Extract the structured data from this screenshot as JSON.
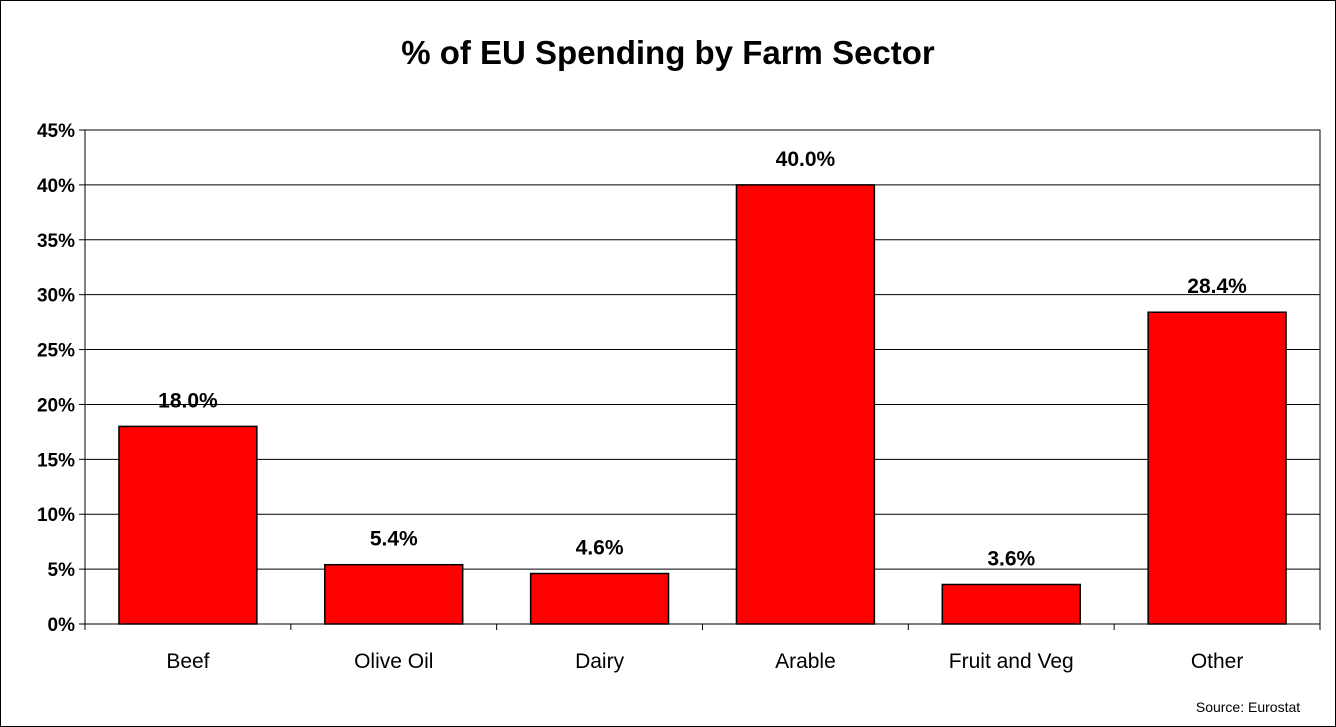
{
  "chart_data": {
    "type": "bar",
    "title": "% of EU Spending by Farm Sector",
    "categories": [
      "Beef",
      "Olive Oil",
      "Dairy",
      "Arable",
      "Fruit and Veg",
      "Other"
    ],
    "values": [
      18.0,
      5.4,
      4.6,
      40.0,
      3.6,
      28.4
    ],
    "data_labels": [
      "18.0%",
      "5.4%",
      "4.6%",
      "40.0%",
      "3.6%",
      "28.4%"
    ],
    "yticks": [
      "0%",
      "5%",
      "10%",
      "15%",
      "20%",
      "25%",
      "30%",
      "35%",
      "40%",
      "45%"
    ],
    "ylim": [
      0,
      45
    ],
    "grid": true,
    "legend": "none",
    "bar_color": "#ff0000",
    "source": "Source: Eurostat"
  }
}
